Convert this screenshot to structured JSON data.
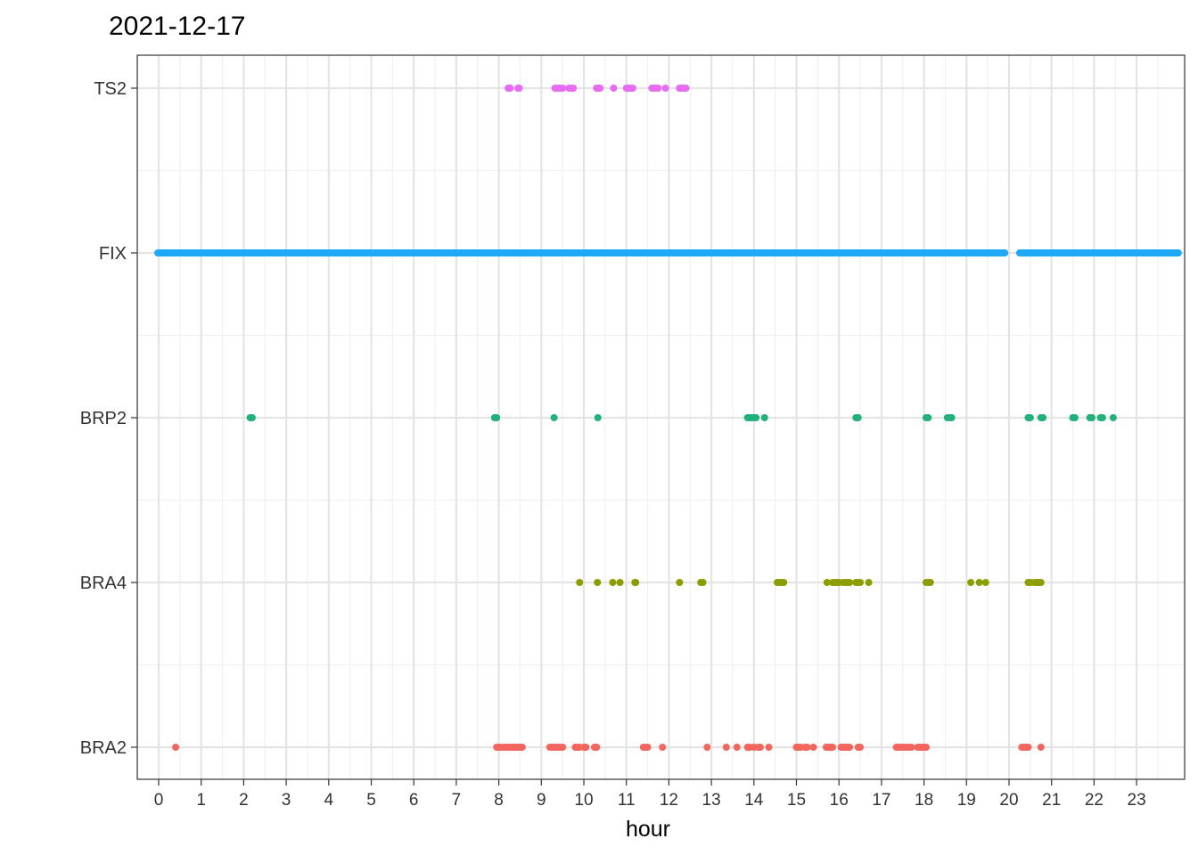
{
  "chart_data": {
    "type": "scatter",
    "title": "2021-12-17",
    "xlabel": "hour",
    "ylabel": "",
    "xlim": [
      -0.5,
      24.0
    ],
    "x_ticks": [
      "0",
      "1",
      "2",
      "3",
      "4",
      "5",
      "6",
      "7",
      "8",
      "9",
      "10",
      "11",
      "12",
      "13",
      "14",
      "15",
      "16",
      "17",
      "18",
      "19",
      "20",
      "21",
      "22",
      "23"
    ],
    "categories": [
      "BRA2",
      "BRA4",
      "BRP2",
      "FIX",
      "TS2"
    ],
    "grid": true,
    "legend": "none",
    "series": [
      {
        "category": "TS2",
        "color": "#E76BF3",
        "points": [
          8.22,
          8.27,
          8.45,
          8.48,
          9.32,
          9.36,
          9.4,
          9.45,
          9.5,
          9.65,
          9.7,
          9.75,
          10.3,
          10.34,
          10.38,
          10.7,
          11.0,
          11.05,
          11.1,
          11.15,
          11.6,
          11.65,
          11.7,
          11.75,
          11.92,
          12.25,
          12.3,
          12.35,
          12.4
        ]
      },
      {
        "category": "FIX",
        "color": "#1FA8F5",
        "segments": [
          [
            -0.02,
            19.0
          ],
          [
            19.05,
            19.9
          ],
          [
            20.25,
            23.98
          ]
        ]
      },
      {
        "category": "BRP2",
        "color": "#22B07B",
        "points": [
          2.15,
          2.2,
          7.9,
          7.95,
          9.3,
          10.33,
          13.85,
          13.9,
          13.95,
          14.0,
          14.05,
          14.25,
          16.4,
          16.45,
          18.05,
          18.1,
          18.55,
          18.6,
          18.65,
          20.45,
          20.5,
          20.75,
          20.8,
          21.5,
          21.55,
          21.9,
          21.95,
          22.15,
          22.2,
          22.45
        ]
      },
      {
        "category": "BRA4",
        "color": "#8C9D00",
        "points": [
          9.9,
          10.32,
          10.68,
          10.85,
          11.2,
          11.22,
          12.25,
          12.75,
          12.8,
          14.55,
          14.6,
          14.65,
          14.7,
          15.72,
          15.85,
          15.9,
          15.95,
          16.0,
          16.1,
          16.15,
          16.2,
          16.25,
          16.4,
          16.45,
          16.5,
          16.7,
          18.05,
          18.1,
          18.15,
          19.1,
          19.3,
          19.45,
          20.45,
          20.5,
          20.6,
          20.65,
          20.7,
          20.75
        ]
      },
      {
        "category": "BRA2",
        "color": "#F2665E",
        "points": [
          0.4,
          7.95,
          8.0,
          8.05,
          8.1,
          8.15,
          8.2,
          8.25,
          8.3,
          8.35,
          8.4,
          8.45,
          8.5,
          8.55,
          9.2,
          9.25,
          9.3,
          9.35,
          9.4,
          9.45,
          9.5,
          9.8,
          9.85,
          9.9,
          10.0,
          10.05,
          10.25,
          10.3,
          11.4,
          11.45,
          11.5,
          11.85,
          12.9,
          13.35,
          13.6,
          13.85,
          13.9,
          14.0,
          14.1,
          14.15,
          14.35,
          15.0,
          15.05,
          15.1,
          15.2,
          15.25,
          15.4,
          15.7,
          15.75,
          15.8,
          15.85,
          16.05,
          16.1,
          16.15,
          16.2,
          16.25,
          16.45,
          16.5,
          17.35,
          17.4,
          17.45,
          17.5,
          17.55,
          17.6,
          17.65,
          17.7,
          17.85,
          17.9,
          17.95,
          18.0,
          18.05,
          20.3,
          20.35,
          20.4,
          20.45,
          20.75
        ]
      }
    ]
  }
}
